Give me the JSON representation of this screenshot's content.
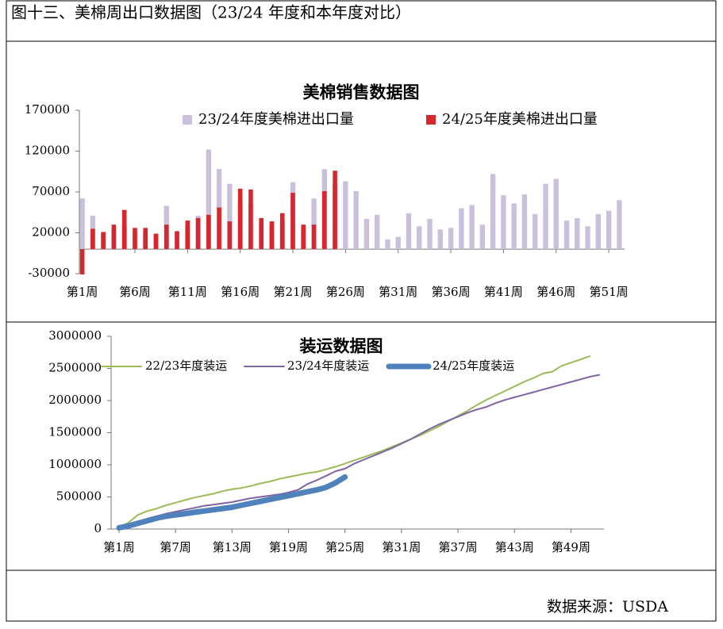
{
  "header": {
    "title": "图十三、美棉周出口数据图（23/24 年度和本年度对比）"
  },
  "chart_data": [
    {
      "type": "bar",
      "title": "美棉销售数据图",
      "categories": [
        "第1周",
        null,
        null,
        null,
        null,
        "第6周",
        null,
        null,
        null,
        null,
        "第11周",
        null,
        null,
        null,
        null,
        "第16周",
        null,
        null,
        null,
        null,
        "第21周",
        null,
        null,
        null,
        null,
        "第26周",
        null,
        null,
        null,
        null,
        "第31周",
        null,
        null,
        null,
        null,
        "第36周",
        null,
        null,
        null,
        null,
        "第41周",
        null,
        null,
        null,
        null,
        "第46周",
        null,
        null,
        null,
        null,
        "第51周",
        null
      ],
      "series": [
        {
          "name": "23/24年度美棉进出口量",
          "color": "#cbc0db",
          "values": [
            62000,
            41000,
            20000,
            25000,
            30000,
            22000,
            20000,
            18000,
            53000,
            20000,
            30000,
            41000,
            122000,
            98000,
            80000,
            60000,
            55000,
            30000,
            30000,
            35000,
            82000,
            25000,
            62000,
            98000,
            80000,
            83000,
            71000,
            37000,
            42000,
            12000,
            15000,
            44000,
            28000,
            37000,
            24000,
            26000,
            50000,
            54000,
            30000,
            92000,
            66000,
            56000,
            67000,
            43000,
            80000,
            86000,
            35000,
            38000,
            28000,
            43000,
            47000,
            60000
          ]
        },
        {
          "name": "24/25年度美棉进出口量",
          "color": "#d9262c",
          "values": [
            -31000,
            25000,
            21000,
            30000,
            48000,
            26000,
            26000,
            19000,
            30000,
            22000,
            35000,
            38000,
            42000,
            51000,
            34000,
            74000,
            73000,
            38000,
            34000,
            44000,
            69000,
            30000,
            30000,
            71000,
            96000,
            null,
            null,
            null,
            null,
            null,
            null,
            null,
            null,
            null,
            null,
            null,
            null,
            null,
            null,
            null,
            null,
            null,
            null,
            null,
            null,
            null,
            null,
            null,
            null,
            null,
            null,
            null
          ]
        }
      ],
      "ylim": [
        -30000,
        170000
      ],
      "yticks": [
        -30000,
        20000,
        70000,
        120000,
        170000
      ]
    },
    {
      "type": "line",
      "title": "装运数据图",
      "categories": [
        "第1周",
        null,
        null,
        null,
        null,
        null,
        "第7周",
        null,
        null,
        null,
        null,
        null,
        "第13周",
        null,
        null,
        null,
        null,
        null,
        "第19周",
        null,
        null,
        null,
        null,
        null,
        "第25周",
        null,
        null,
        null,
        null,
        null,
        "第31周",
        null,
        null,
        null,
        null,
        null,
        "第37周",
        null,
        null,
        null,
        null,
        null,
        "第43周",
        null,
        null,
        null,
        null,
        null,
        "第49周",
        null,
        null,
        null
      ],
      "series": [
        {
          "name": "22/23年度装运",
          "color": "#9bbb59",
          "values": [
            30000,
            100000,
            220000,
            280000,
            320000,
            370000,
            410000,
            450000,
            490000,
            520000,
            550000,
            590000,
            620000,
            640000,
            670000,
            710000,
            740000,
            780000,
            810000,
            840000,
            870000,
            890000,
            930000,
            970000,
            1020000,
            1070000,
            1120000,
            1170000,
            1220000,
            1280000,
            1340000,
            1400000,
            1460000,
            1530000,
            1600000,
            1680000,
            1760000,
            1840000,
            1930000,
            2010000,
            2080000,
            2150000,
            2220000,
            2290000,
            2350000,
            2420000,
            2450000,
            2540000,
            2590000,
            2640000,
            2690000,
            null
          ]
        },
        {
          "name": "23/24年度装运",
          "color": "#8064a2",
          "values": [
            30000,
            60000,
            110000,
            160000,
            200000,
            240000,
            270000,
            300000,
            330000,
            360000,
            380000,
            400000,
            420000,
            450000,
            480000,
            500000,
            520000,
            540000,
            570000,
            610000,
            700000,
            760000,
            830000,
            900000,
            940000,
            1020000,
            1080000,
            1140000,
            1200000,
            1260000,
            1330000,
            1400000,
            1480000,
            1560000,
            1630000,
            1690000,
            1750000,
            1810000,
            1860000,
            1900000,
            1960000,
            2010000,
            2050000,
            2090000,
            2130000,
            2170000,
            2210000,
            2250000,
            2290000,
            2330000,
            2370000,
            2400000
          ]
        },
        {
          "name": "24/25年度装运",
          "color": "#4f81bd",
          "values": [
            20000,
            50000,
            90000,
            130000,
            170000,
            200000,
            220000,
            240000,
            260000,
            280000,
            300000,
            320000,
            340000,
            370000,
            400000,
            430000,
            460000,
            490000,
            520000,
            550000,
            580000,
            610000,
            650000,
            720000,
            810000,
            null,
            null,
            null,
            null,
            null,
            null,
            null,
            null,
            null,
            null,
            null,
            null,
            null,
            null,
            null,
            null,
            null,
            null,
            null,
            null,
            null,
            null,
            null,
            null,
            null,
            null,
            null
          ]
        }
      ],
      "ylim": [
        0,
        3000000
      ],
      "yticks": [
        0,
        500000,
        1000000,
        1500000,
        2000000,
        2500000,
        3000000
      ]
    }
  ],
  "footer": {
    "source": "数据来源：USDA"
  }
}
